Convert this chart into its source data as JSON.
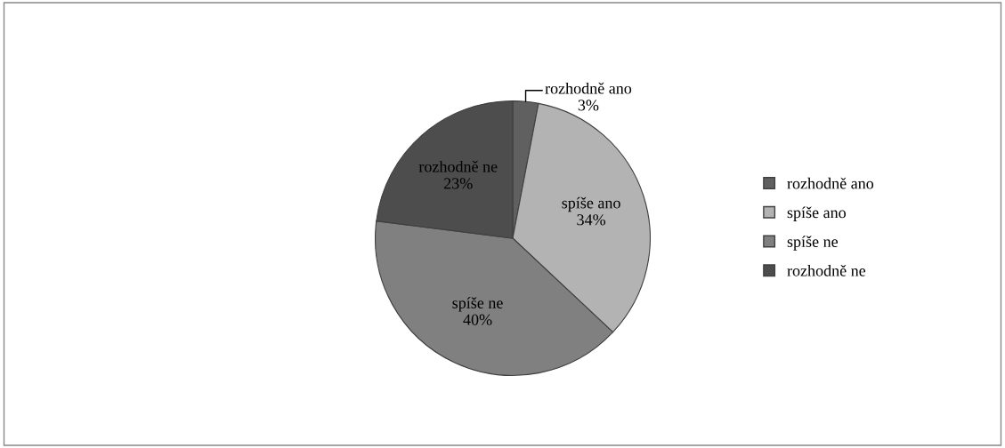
{
  "chart_data": {
    "type": "pie",
    "categories": [
      "rozhodně ano",
      "spíše ano",
      "spíše ne",
      "rozhodně ne"
    ],
    "values": [
      3,
      34,
      40,
      23
    ],
    "value_labels": [
      "3%",
      "34%",
      "40%",
      "23%"
    ],
    "colors": [
      "#606060",
      "#b3b3b3",
      "#808080",
      "#4d4d4d"
    ],
    "legend": "right"
  }
}
